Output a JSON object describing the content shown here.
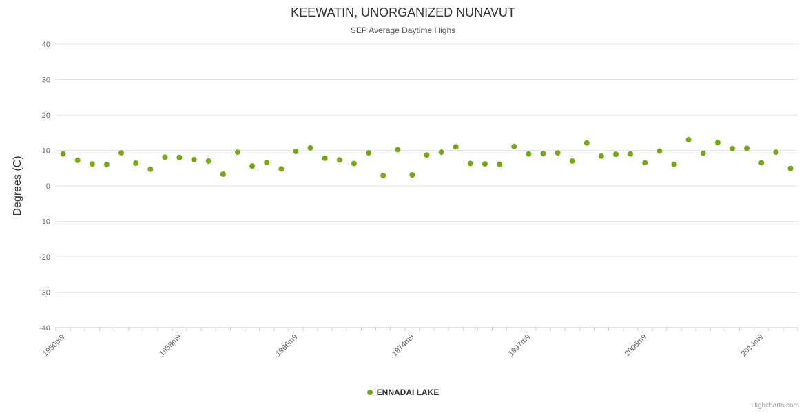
{
  "credits": {
    "label": "Highcharts.com"
  },
  "chart_data": {
    "type": "scatter",
    "title": "KEEWATIN, UNORGANIZED NUNAVUT",
    "subtitle": "SEP Average Daytime Highs",
    "xlabel": "",
    "ylabel": "Degrees (C)",
    "ylim": [
      -40,
      40
    ],
    "ytick_interval": 10,
    "grid": true,
    "legend_position": "bottom",
    "x_tick_labels": [
      "1950m9",
      "1958m9",
      "1966m9",
      "1974m9",
      "1997m9",
      "2005m9",
      "2014m9"
    ],
    "x_tick_indices": [
      0,
      8,
      16,
      24,
      32,
      40,
      48
    ],
    "series": [
      {
        "name": "ENNADAI LAKE",
        "color": "#76A716",
        "marker": "circle",
        "values": [
          9.0,
          7.2,
          6.2,
          6.0,
          9.3,
          6.4,
          4.7,
          8.1,
          8.0,
          7.4,
          7.0,
          3.3,
          9.5,
          5.6,
          6.6,
          4.8,
          9.7,
          10.7,
          7.8,
          7.3,
          6.3,
          9.3,
          2.9,
          10.2,
          3.1,
          8.7,
          9.5,
          11.0,
          6.3,
          6.2,
          6.1,
          11.1,
          9.0,
          9.1,
          9.3,
          7.0,
          12.1,
          8.4,
          8.9,
          9.0,
          6.5,
          9.8,
          6.1,
          13.0,
          9.2,
          12.2,
          10.5,
          10.6,
          6.5,
          9.5,
          4.9
        ]
      }
    ]
  }
}
